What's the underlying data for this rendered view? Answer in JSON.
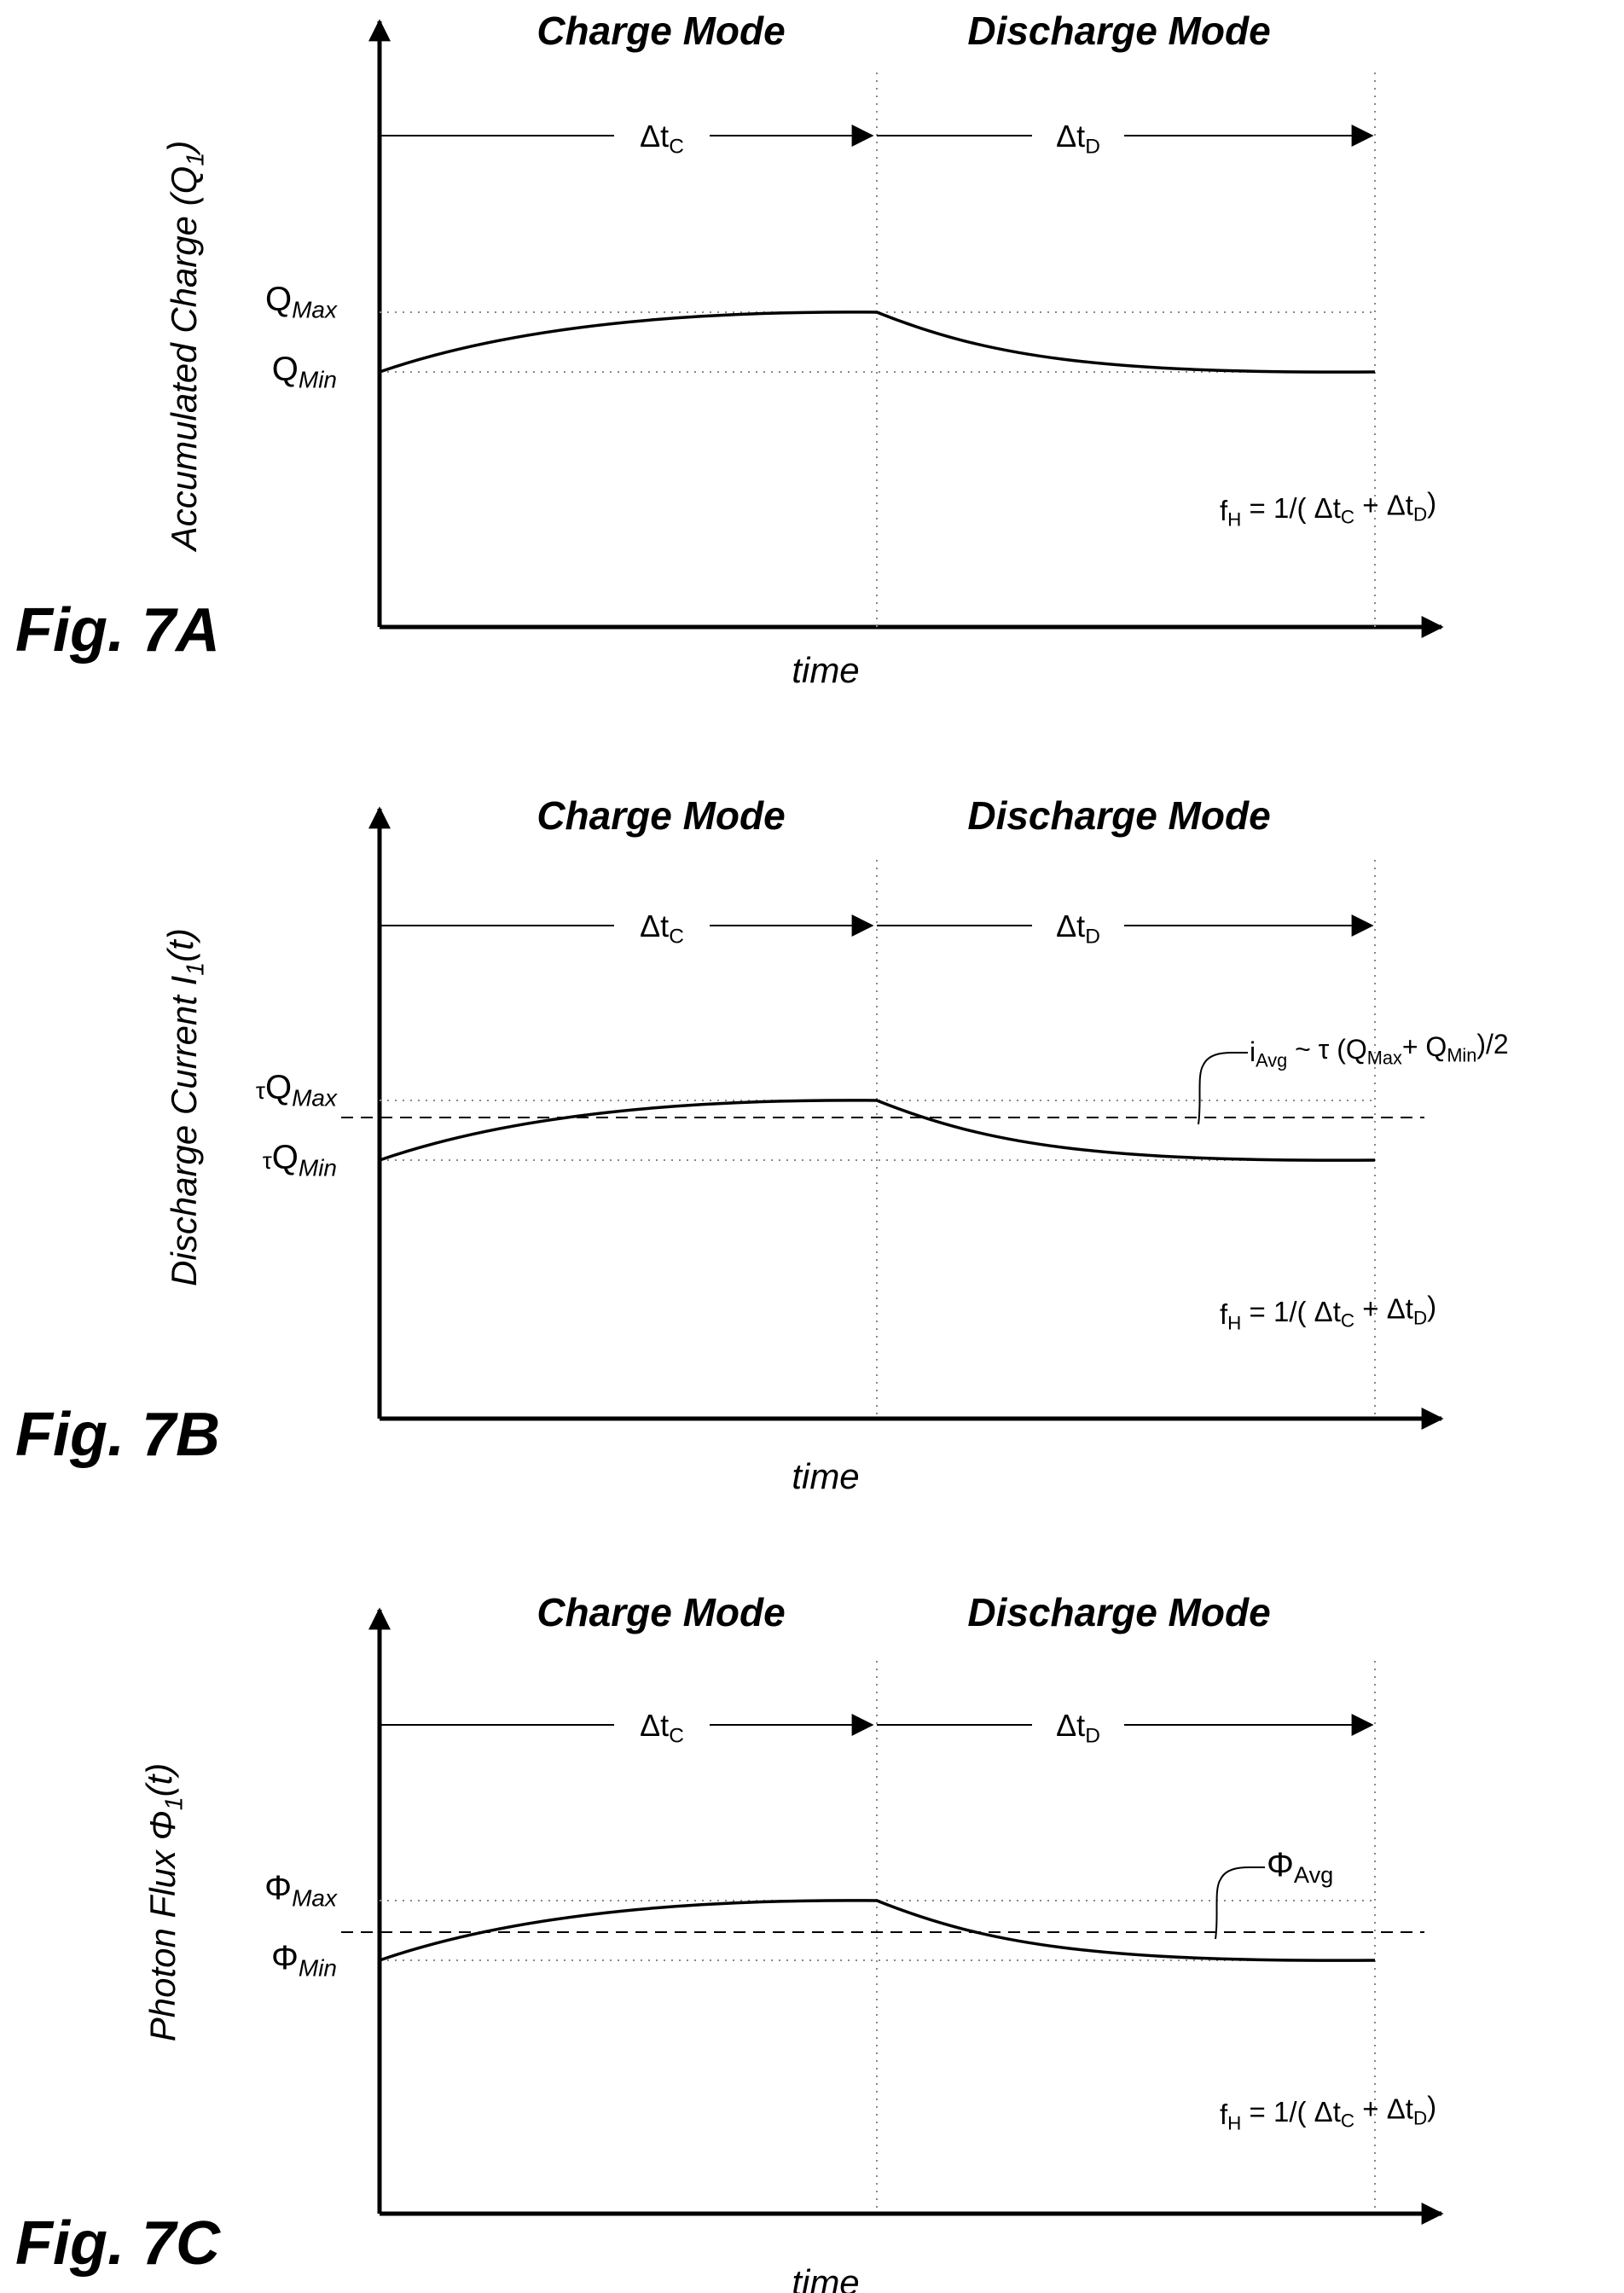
{
  "figures": [
    {
      "id": "7A",
      "fig_label": "Fig. 7A",
      "charge_mode": "Charge Mode",
      "discharge_mode": "Discharge Mode",
      "y_label": {
        "main": "Accumulated Charge (Q",
        "sub": "1",
        "post": ")"
      },
      "x_label": "time",
      "dt_charge": {
        "main": "Δt",
        "sub": "C"
      },
      "dt_discharge": {
        "main": "Δt",
        "sub": "D"
      },
      "level_max": {
        "prefix": "",
        "main": "Q",
        "sub": "Max"
      },
      "level_min": {
        "prefix": "",
        "main": "Q",
        "sub": "Min"
      },
      "formula": {
        "a": "f",
        "a_sub": "H",
        "b": "  = 1/( Δt",
        "b_sub": "C",
        "c": " + Δt",
        "c_sub": "D",
        "d": ")"
      },
      "average": null
    },
    {
      "id": "7B",
      "fig_label": "Fig. 7B",
      "charge_mode": "Charge Mode",
      "discharge_mode": "Discharge Mode",
      "y_label": {
        "main": "Discharge Current I",
        "sub": "1",
        "post": "(t)"
      },
      "x_label": "time",
      "dt_charge": {
        "main": "Δt",
        "sub": "C"
      },
      "dt_discharge": {
        "main": "Δt",
        "sub": "D"
      },
      "level_max": {
        "prefix": "τ",
        "main": "Q",
        "sub": "Max"
      },
      "level_min": {
        "prefix": "τ",
        "main": "Q",
        "sub": "Min"
      },
      "formula": {
        "a": "f",
        "a_sub": "H",
        "b": "  = 1/( Δt",
        "b_sub": "C",
        "c": " + Δt",
        "c_sub": "D",
        "d": ")"
      },
      "average": {
        "a": "i",
        "a_sub": "Avg",
        "b": "  ~ τ (Q",
        "b_sub": "Max",
        "c": "+ Q",
        "c_sub": "Min",
        "d": ")/2"
      }
    },
    {
      "id": "7C",
      "fig_label": "Fig. 7C",
      "charge_mode": "Charge Mode",
      "discharge_mode": "Discharge Mode",
      "y_label": {
        "main": "Photon Flux Φ",
        "sub": "1",
        "post": "(t)"
      },
      "x_label": "time",
      "dt_charge": {
        "main": "Δt",
        "sub": "C"
      },
      "dt_discharge": {
        "main": "Δt",
        "sub": "D"
      },
      "level_max": {
        "prefix": "",
        "main": "Φ",
        "sub": "Max"
      },
      "level_min": {
        "prefix": "",
        "main": "Φ",
        "sub": "Min"
      },
      "formula": {
        "a": "f",
        "a_sub": "H",
        "b": "  = 1/( Δt",
        "b_sub": "C",
        "c": " + Δt",
        "c_sub": "D",
        "d": ")"
      },
      "average": {
        "a": "Φ",
        "a_sub": "Avg",
        "b": "",
        "b_sub": "",
        "c": "",
        "c_sub": "",
        "d": ""
      }
    }
  ]
}
